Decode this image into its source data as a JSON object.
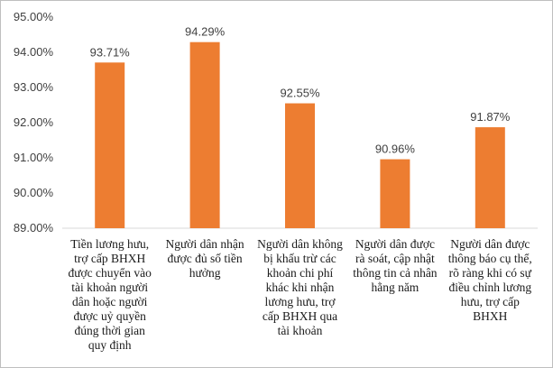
{
  "chart_data": {
    "type": "bar",
    "categories": [
      "Tiền lương hưu,\ntrợ cấp BHXH\nđược chuyển vào\ntài khoản người\ndân hoặc người\nđược uỷ quyền\nđúng thời gian\nquy định",
      "Người dân nhận\nđược đủ số tiền\nhưởng",
      "Người dân không\nbị khấu trừ các\nkhoản chi phí\nkhác khi nhận\nlương hưu, trợ\ncấp BHXH qua\ntài khoản",
      "Người dân được\nrà soát, cập nhật\nthông tin cả nhân\nhằng năm",
      "Người dân được\nthông báo cụ thể,\nrõ ràng khi có sự\nđiều chỉnh lương\nhưu, trợ cấp\nBHXH"
    ],
    "values": [
      93.71,
      94.29,
      92.55,
      90.96,
      91.87
    ],
    "data_labels": [
      "93.71%",
      "94.29%",
      "92.55%",
      "90.96%",
      "91.87%"
    ],
    "ylim": [
      89,
      95
    ],
    "yticks": [
      "89.00%",
      "90.00%",
      "91.00%",
      "92.00%",
      "93.00%",
      "94.00%",
      "95.00%"
    ],
    "bar_color": "#ED7D31",
    "grid": false,
    "title": "",
    "xlabel": "",
    "ylabel": ""
  }
}
